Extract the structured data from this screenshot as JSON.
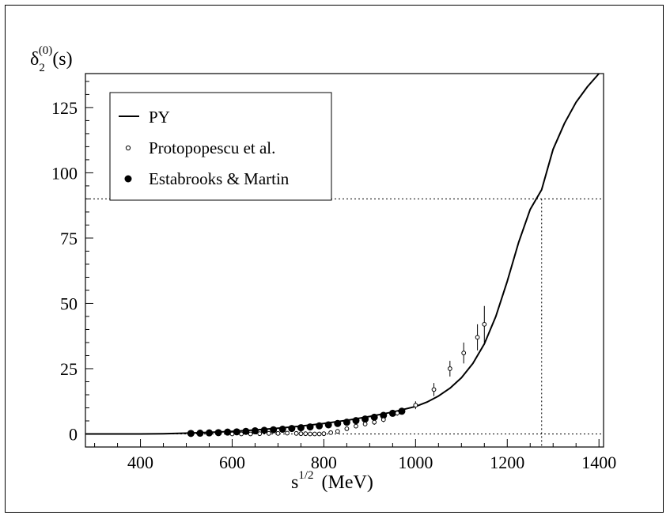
{
  "chart_data": {
    "type": "line",
    "title": "",
    "ylabel": {
      "symbol": "δ",
      "subscript": "2",
      "superscript": "(0)",
      "suffix": "(s)"
    },
    "xlabel": {
      "base": "s",
      "superscript": "1/2",
      "units": "(MeV)"
    },
    "xlim": [
      280,
      1410
    ],
    "ylim": [
      -5,
      138
    ],
    "x_ticks": [
      400,
      600,
      800,
      1000,
      1200,
      1400
    ],
    "y_ticks": [
      0,
      25,
      50,
      75,
      100,
      125
    ],
    "grid": false,
    "legend_position": "top-left",
    "reference_lines": {
      "horizontal": [
        0,
        90
      ],
      "vertical_at_y90": 1275
    },
    "series": [
      {
        "name": "PY",
        "style": "line",
        "x": [
          280,
          350,
          400,
          450,
          500,
          550,
          600,
          650,
          700,
          750,
          800,
          850,
          900,
          950,
          1000,
          1025,
          1050,
          1075,
          1100,
          1125,
          1150,
          1175,
          1200,
          1225,
          1250,
          1275,
          1300,
          1325,
          1350,
          1375,
          1400
        ],
        "y": [
          0,
          0,
          0,
          0.1,
          0.3,
          0.6,
          1.0,
          1.5,
          2.2,
          3.0,
          4.0,
          5.2,
          6.7,
          8.4,
          10.5,
          12.2,
          14.5,
          17.5,
          21.5,
          27.0,
          34.5,
          45.0,
          58.5,
          73.5,
          86.0,
          93.5,
          109.0,
          119.0,
          127.0,
          133.0,
          138.0
        ]
      },
      {
        "name": "Protopopescu et al.",
        "style": "open-circle",
        "x": [
          600,
          620,
          640,
          660,
          680,
          700,
          720,
          740,
          750,
          760,
          770,
          780,
          790,
          800,
          815,
          830,
          850,
          870,
          890,
          910,
          930,
          960,
          1000,
          1040,
          1075,
          1105,
          1135,
          1150
        ],
        "y": [
          0,
          0,
          0,
          0.1,
          0.2,
          0.2,
          0.3,
          0.2,
          0.1,
          0.1,
          0,
          0,
          0,
          0.1,
          0.5,
          1.0,
          2.0,
          3.0,
          3.8,
          4.5,
          5.5,
          8.0,
          11.0,
          17.0,
          25.0,
          31.0,
          37.0,
          42.0
        ],
        "err": [
          0,
          0,
          0,
          0,
          0,
          0,
          0,
          0,
          0,
          0,
          0,
          0,
          0,
          0,
          0.8,
          0.8,
          0.8,
          0.8,
          0.8,
          1.0,
          1.0,
          1.0,
          1.5,
          2.5,
          3.0,
          4.0,
          5.0,
          7.0
        ]
      },
      {
        "name": "Estabrooks & Martin",
        "style": "filled-circle",
        "x": [
          510,
          530,
          550,
          570,
          590,
          610,
          630,
          650,
          670,
          690,
          710,
          730,
          750,
          770,
          790,
          810,
          830,
          850,
          870,
          890,
          910,
          930,
          950,
          970
        ],
        "y": [
          0.2,
          0.3,
          0.4,
          0.5,
          0.7,
          0.8,
          1.0,
          1.2,
          1.4,
          1.6,
          1.8,
          2.1,
          2.4,
          2.7,
          3.1,
          3.5,
          4.0,
          4.5,
          5.1,
          5.7,
          6.4,
          7.1,
          7.9,
          8.7
        ]
      }
    ]
  }
}
